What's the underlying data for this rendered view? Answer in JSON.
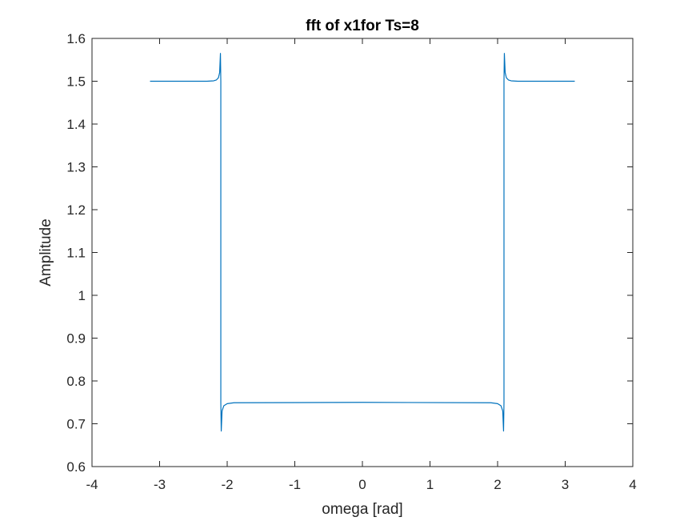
{
  "chart_data": {
    "type": "line",
    "title": "fft of x1for Ts=8",
    "xlabel": "omega [rad]",
    "ylabel": "Amplitude",
    "xlim": [
      -4,
      4
    ],
    "ylim": [
      0.6,
      1.6
    ],
    "xticks": [
      -4,
      -3,
      -2,
      -1,
      0,
      1,
      2,
      3,
      4
    ],
    "yticks": [
      0.6,
      0.7,
      0.8,
      0.9,
      1,
      1.1,
      1.2,
      1.3,
      1.4,
      1.5,
      1.6
    ],
    "xtick_labels": [
      "-4",
      "-3",
      "-2",
      "-1",
      "0",
      "1",
      "2",
      "3",
      "4"
    ],
    "ytick_labels": [
      "0.6",
      "0.7",
      "0.8",
      "0.9",
      "1",
      "1.1",
      "1.2",
      "1.3",
      "1.4",
      "1.5",
      "1.6"
    ],
    "grid": false,
    "legend": "none",
    "line_color": "#0072BD",
    "series": [
      {
        "x": [
          -3.1416,
          -2.3,
          -2.2,
          -2.16,
          -2.13,
          -2.112,
          -2.1,
          -2.0944,
          -2.0944,
          -2.088,
          -2.076,
          -2.05,
          -2.0,
          -1.9,
          0,
          1.9,
          2.0,
          2.05,
          2.076,
          2.088,
          2.0944,
          2.0944,
          2.1,
          2.112,
          2.13,
          2.16,
          2.2,
          2.3,
          3.1416
        ],
        "y": [
          1.5,
          1.5,
          1.501,
          1.503,
          1.508,
          1.52,
          1.565,
          1.5,
          0.75,
          0.683,
          0.73,
          0.742,
          0.747,
          0.749,
          0.75,
          0.749,
          0.747,
          0.742,
          0.73,
          0.683,
          0.75,
          1.5,
          1.565,
          1.52,
          1.508,
          1.503,
          1.501,
          1.5,
          1.5
        ]
      }
    ]
  }
}
